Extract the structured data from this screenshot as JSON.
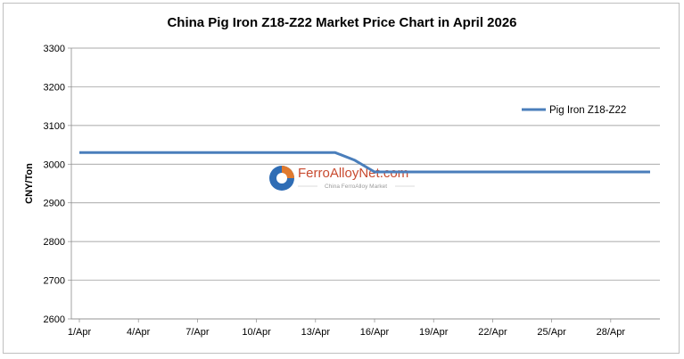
{
  "chart_data": {
    "type": "line",
    "title": "China Pig Iron Z18-Z22 Market Price Chart in April 2026",
    "xlabel": "",
    "ylabel": "CNY/Ton",
    "ylim": [
      2600,
      3300
    ],
    "yticks": [
      2600,
      2700,
      2800,
      2900,
      3000,
      3100,
      3200,
      3300
    ],
    "xticks": [
      "1/Apr",
      "4/Apr",
      "7/Apr",
      "10/Apr",
      "13/Apr",
      "16/Apr",
      "19/Apr",
      "22/Apr",
      "25/Apr",
      "28/Apr"
    ],
    "xlim": [
      1,
      30
    ],
    "grid": "horizontal",
    "legend": "right",
    "series": [
      {
        "name": "Pig Iron Z18-Z22",
        "color": "#4a7ebb",
        "x": [
          1,
          14,
          15,
          15.5,
          16,
          30
        ],
        "y": [
          3030,
          3030,
          3010,
          2995,
          2980,
          2980
        ]
      }
    ]
  },
  "watermark": {
    "brand": "FerroAlloyNet.com",
    "tagline": "China FerroAlloy Market"
  }
}
